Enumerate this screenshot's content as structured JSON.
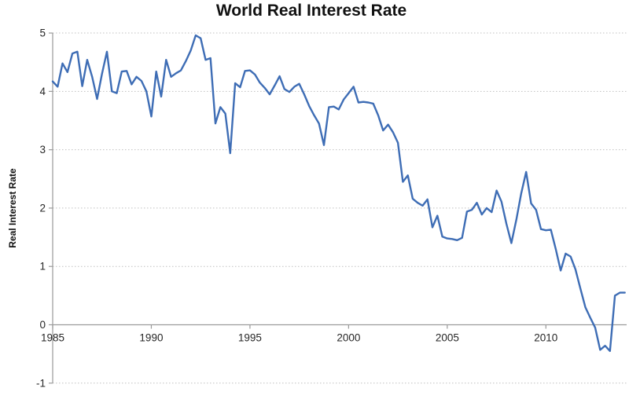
{
  "chart_data": {
    "type": "line",
    "title": "World Real Interest Rate",
    "ylabel": "Real Interest Rate",
    "xlabel": "",
    "legend": "none",
    "grid": "horizontal-dotted",
    "x_start": "1985Q1",
    "x_end": "2014Q1",
    "x_freq": "quarterly",
    "x_tick_labels": [
      "1985",
      "1990",
      "1995",
      "2000",
      "2005",
      "2010"
    ],
    "x_tick_years": [
      1985,
      1990,
      1995,
      2000,
      2005,
      2010
    ],
    "y_tick_labels": [
      "5",
      "4",
      "3",
      "2",
      "1",
      "0",
      "-1"
    ],
    "y_ticks": [
      5,
      4,
      3,
      2,
      1,
      0,
      -1
    ],
    "ylim": [
      -1,
      5
    ],
    "series": [
      {
        "name": "World Real Interest Rate",
        "color": "#3E6DB5",
        "values": [
          4.17,
          4.08,
          4.48,
          4.33,
          4.65,
          4.68,
          4.09,
          4.54,
          4.25,
          3.87,
          4.3,
          4.68,
          4.0,
          3.97,
          4.34,
          4.35,
          4.12,
          4.25,
          4.18,
          4.0,
          3.57,
          4.34,
          3.91,
          4.54,
          4.25,
          4.31,
          4.36,
          4.52,
          4.7,
          4.96,
          4.91,
          4.54,
          4.57,
          3.45,
          3.73,
          3.62,
          2.94,
          4.14,
          4.07,
          4.35,
          4.36,
          4.29,
          4.15,
          4.06,
          3.95,
          4.1,
          4.26,
          4.04,
          3.99,
          4.08,
          4.13,
          3.95,
          3.75,
          3.59,
          3.45,
          3.08,
          3.73,
          3.74,
          3.69,
          3.86,
          3.97,
          4.08,
          3.81,
          3.82,
          3.81,
          3.79,
          3.59,
          3.33,
          3.43,
          3.3,
          3.12,
          2.45,
          2.56,
          2.16,
          2.09,
          2.04,
          2.15,
          1.67,
          1.87,
          1.51,
          1.48,
          1.47,
          1.45,
          1.49,
          1.94,
          1.97,
          2.09,
          1.89,
          2.0,
          1.93,
          2.3,
          2.11,
          1.73,
          1.4,
          1.8,
          2.25,
          2.62,
          2.08,
          1.97,
          1.64,
          1.62,
          1.63,
          1.3,
          0.93,
          1.22,
          1.17,
          0.95,
          0.62,
          0.3,
          0.12,
          -0.05,
          -0.43,
          -0.36,
          -0.45,
          0.5,
          0.55,
          0.55
        ]
      }
    ]
  },
  "style": {
    "line_color": "#3E6DB5",
    "grid_color": "#c0c0c0",
    "axis_color": "#9a9a9a",
    "tick_text_color": "#262626",
    "title_color": "#111111",
    "background": "#ffffff"
  }
}
